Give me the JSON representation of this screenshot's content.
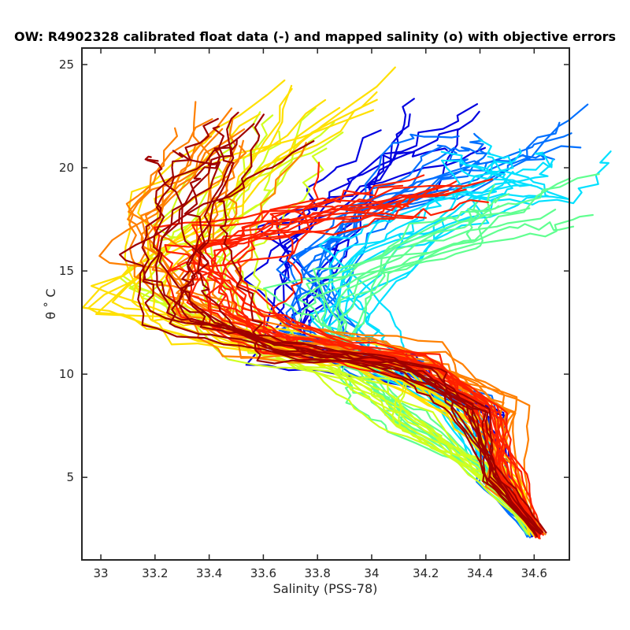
{
  "chart_data": {
    "type": "line",
    "title": "OW: R4902328 calibrated float data (-) and mapped salinity (o) with objective errors",
    "xlabel": "Salinity (PSS-78)",
    "ylabel": "θ ˚ C",
    "xlim": [
      32.93,
      34.73
    ],
    "ylim": [
      1.0,
      25.8
    ],
    "xticks": [
      33,
      33.2,
      33.4,
      33.6,
      33.8,
      34,
      34.2,
      34.4,
      34.6
    ],
    "xtick_labels": [
      "33",
      "33.2",
      "33.4",
      "33.6",
      "33.8",
      "34",
      "34.2",
      "34.4",
      "34.6"
    ],
    "yticks": [
      5,
      10,
      15,
      20,
      25
    ],
    "ytick_labels": [
      "5",
      "10",
      "15",
      "20",
      "25"
    ],
    "grid": false,
    "colormap": "jet (profile index: early = blue, late = dark red)",
    "profile_groups": [
      {
        "stage": 0.04,
        "count": 8,
        "color": "#0000e0",
        "shape": [
          [
            34.6,
            2.2
          ],
          [
            34.45,
            5
          ],
          [
            34.4,
            8
          ],
          [
            34.1,
            10.3
          ],
          [
            33.72,
            11.2
          ],
          [
            33.65,
            14
          ],
          [
            33.75,
            17
          ],
          [
            33.95,
            19.5
          ],
          [
            34.2,
            22
          ]
        ]
      },
      {
        "stage": 0.2,
        "count": 10,
        "color": "#0070ff",
        "shape": [
          [
            34.6,
            2.3
          ],
          [
            34.45,
            5
          ],
          [
            34.35,
            8.5
          ],
          [
            34.05,
            10.6
          ],
          [
            33.8,
            11.8
          ],
          [
            33.8,
            15
          ],
          [
            34.05,
            17.5
          ],
          [
            34.35,
            20
          ],
          [
            34.55,
            21.5
          ]
        ]
      },
      {
        "stage": 0.36,
        "count": 10,
        "color": "#00e0ff",
        "shape": [
          [
            34.6,
            2.3
          ],
          [
            34.45,
            5.5
          ],
          [
            34.3,
            8.5
          ],
          [
            34.0,
            10.8
          ],
          [
            33.9,
            12.5
          ],
          [
            34.0,
            15.5
          ],
          [
            34.3,
            18
          ],
          [
            34.5,
            19.5
          ],
          [
            34.62,
            20.5
          ]
        ]
      },
      {
        "stage": 0.5,
        "count": 10,
        "color": "#60ff90",
        "shape": [
          [
            34.6,
            2.3
          ],
          [
            34.4,
            5.5
          ],
          [
            34.15,
            7.8
          ],
          [
            34.0,
            9.5
          ],
          [
            33.8,
            11.5
          ],
          [
            33.85,
            14
          ],
          [
            34.25,
            17
          ],
          [
            34.55,
            18.5
          ]
        ]
      },
      {
        "stage": 0.62,
        "count": 10,
        "color": "#d0ff20",
        "shape": [
          [
            34.6,
            2.3
          ],
          [
            34.4,
            5.5
          ],
          [
            34.15,
            7.5
          ],
          [
            34.0,
            9.5
          ],
          [
            33.6,
            11.5
          ],
          [
            33.3,
            14
          ],
          [
            33.5,
            18
          ],
          [
            33.75,
            22
          ]
        ]
      },
      {
        "stage": 0.72,
        "count": 10,
        "color": "#ffe000",
        "shape": [
          [
            34.6,
            2.3
          ],
          [
            34.5,
            5
          ],
          [
            34.35,
            8
          ],
          [
            34.0,
            10.5
          ],
          [
            33.4,
            11.8
          ],
          [
            33.1,
            13.8
          ],
          [
            33.3,
            18
          ],
          [
            33.85,
            23.5
          ]
        ]
      },
      {
        "stage": 0.82,
        "count": 12,
        "color": "#ff8000",
        "shape": [
          [
            34.62,
            2.3
          ],
          [
            34.5,
            5
          ],
          [
            34.45,
            8.5
          ],
          [
            34.2,
            10.7
          ],
          [
            33.55,
            11.5
          ],
          [
            33.25,
            13.5
          ],
          [
            33.3,
            17
          ],
          [
            33.5,
            22
          ]
        ]
      },
      {
        "stage": 0.9,
        "count": 14,
        "color": "#ff2000",
        "shape": [
          [
            34.62,
            2.2
          ],
          [
            34.5,
            5
          ],
          [
            34.42,
            8.3
          ],
          [
            34.2,
            10.6
          ],
          [
            33.7,
            11.8
          ],
          [
            33.4,
            13.5
          ],
          [
            33.45,
            16
          ],
          [
            33.8,
            17.5
          ],
          [
            34.2,
            18.5
          ]
        ]
      },
      {
        "stage": 0.97,
        "count": 10,
        "color": "#a00000",
        "shape": [
          [
            34.62,
            2.2
          ],
          [
            34.45,
            5
          ],
          [
            34.38,
            8.3
          ],
          [
            34.15,
            10.3
          ],
          [
            33.6,
            11.5
          ],
          [
            33.3,
            13.2
          ],
          [
            33.25,
            16
          ],
          [
            33.35,
            19.5
          ],
          [
            33.45,
            21.5
          ]
        ]
      }
    ]
  }
}
